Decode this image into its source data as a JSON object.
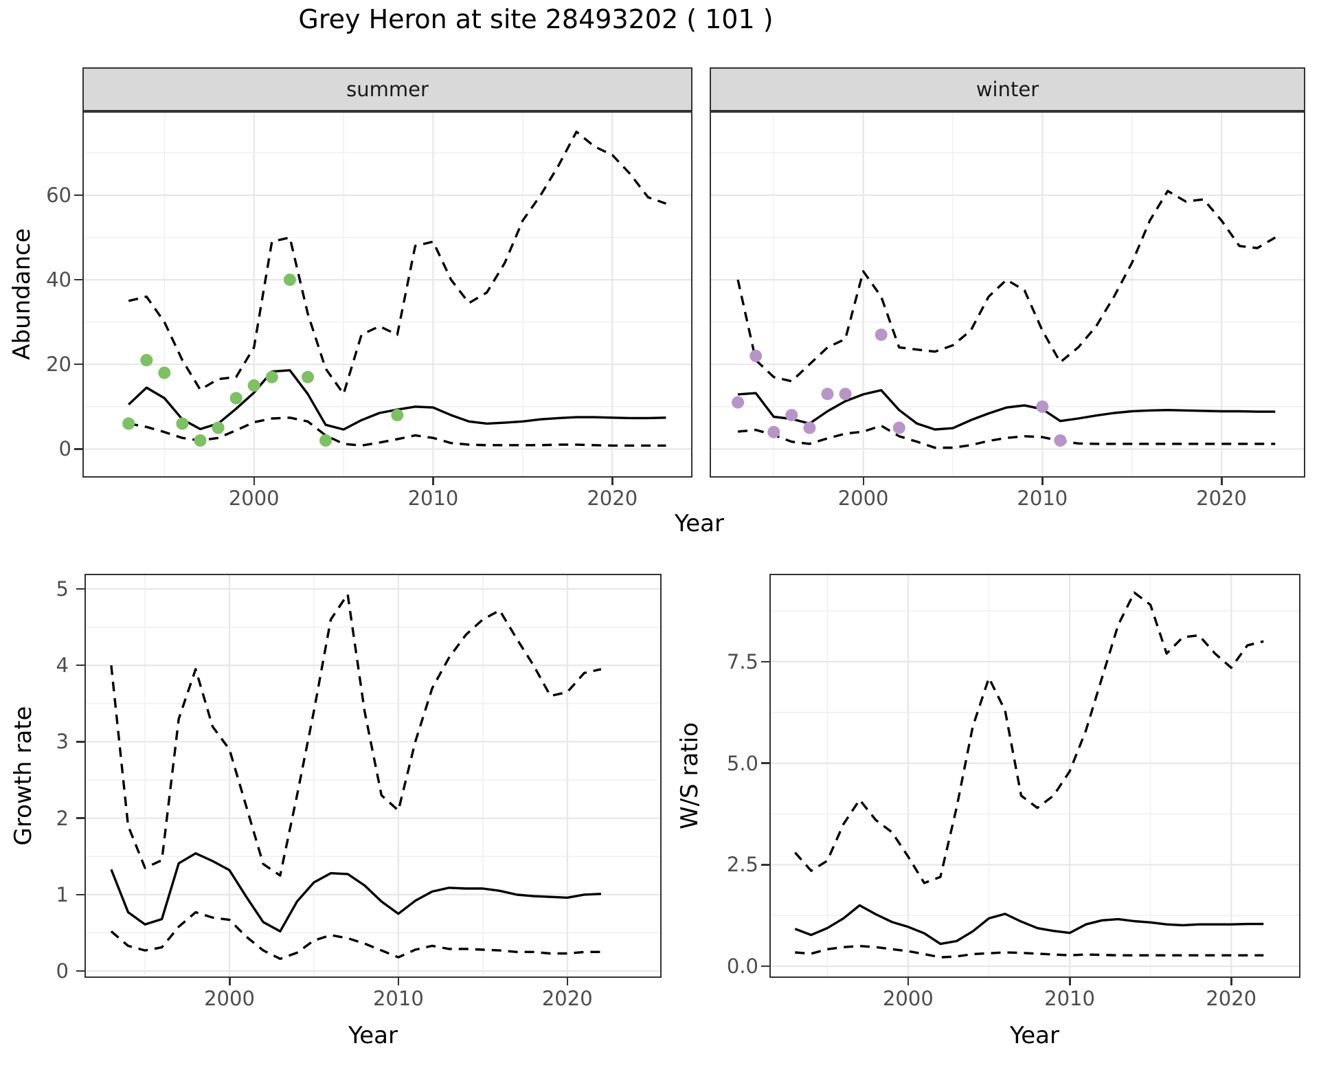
{
  "title": "Grey Heron at site 28493202 ( 101 )",
  "axis_titles": {
    "abundance": "Abundance",
    "year": "Year",
    "growth": "Growth rate",
    "ws": "W/S ratio"
  },
  "facets": [
    {
      "label": "summer"
    },
    {
      "label": "winter"
    }
  ],
  "colors": {
    "summer_point": "#7CC162",
    "winter_point": "#B795C8",
    "line": "#000000",
    "grid_major": "#E7E7E7",
    "grid_minor": "#EFEFEF",
    "strip_bg": "#D9D9D9",
    "panel_border": "#333333",
    "tick_text": "#4D4D4D"
  },
  "chart_data": [
    {
      "type": "line",
      "key": "summer",
      "facet": "summer",
      "ylabel": "Abundance",
      "x": [
        1993,
        1994,
        1995,
        1996,
        1997,
        1998,
        1999,
        2000,
        2001,
        2002,
        2003,
        2004,
        2005,
        2006,
        2007,
        2008,
        2009,
        2010,
        2011,
        2012,
        2013,
        2014,
        2015,
        2016,
        2017,
        2018,
        2019,
        2020,
        2021,
        2022,
        2023
      ],
      "series": [
        {
          "name": "median",
          "style": "solid",
          "values": [
            10.5,
            14.5,
            12,
            7,
            4.7,
            6,
            9.5,
            13.3,
            18.3,
            18.6,
            13,
            5.7,
            4.6,
            6.8,
            8.5,
            9.3,
            10,
            9.8,
            8,
            6.5,
            6,
            6.2,
            6.5,
            7,
            7.3,
            7.5,
            7.5,
            7.4,
            7.3,
            7.3,
            7.4
          ]
        },
        {
          "name": "upper_ci",
          "style": "dashed",
          "values": [
            35,
            36,
            30,
            21,
            14,
            16.5,
            17,
            24,
            49,
            50,
            32,
            19,
            13,
            27,
            29,
            27,
            48,
            49,
            40,
            34.5,
            37,
            44,
            54,
            60,
            67,
            75,
            71.5,
            69.5,
            65,
            59.5,
            58
          ]
        },
        {
          "name": "lower_ci",
          "style": "dashed",
          "values": [
            6,
            5.2,
            4,
            2.6,
            2,
            2.6,
            4.4,
            6.3,
            7.2,
            7.4,
            6.5,
            3.2,
            1.2,
            0.8,
            1.5,
            2.3,
            3.2,
            2.6,
            1.4,
            1,
            0.9,
            0.9,
            0.9,
            0.9,
            1,
            1,
            0.9,
            0.8,
            0.8,
            0.8,
            0.8
          ]
        }
      ],
      "points": {
        "color_key": "summer_point",
        "data": [
          [
            1993,
            6
          ],
          [
            1994,
            21
          ],
          [
            1995,
            18
          ],
          [
            1996,
            6
          ],
          [
            1997,
            2
          ],
          [
            1998,
            5
          ],
          [
            1999,
            12
          ],
          [
            2000,
            15
          ],
          [
            2001,
            17
          ],
          [
            2002,
            40
          ],
          [
            2003,
            17
          ],
          [
            2004,
            2
          ],
          [
            2008,
            8
          ]
        ]
      },
      "xlim": [
        1990.5,
        2024.4
      ],
      "ylim": [
        -6.45,
        79.5
      ],
      "x_ticks": {
        "values": [
          2000,
          2010,
          2020
        ],
        "labels": [
          "2000",
          "2010",
          "2020"
        ],
        "minor": [
          1995,
          2005,
          2015
        ]
      },
      "y_ticks": {
        "values": [
          0,
          20,
          40,
          60
        ],
        "labels": [
          "0",
          "20",
          "40",
          "60"
        ],
        "minor": [
          10,
          30,
          50,
          70
        ],
        "show_labels": true
      }
    },
    {
      "type": "line",
      "key": "winter",
      "facet": "winter",
      "ylabel": "Abundance",
      "x": [
        1993,
        1994,
        1995,
        1996,
        1997,
        1998,
        1999,
        2000,
        2001,
        2002,
        2003,
        2004,
        2005,
        2006,
        2007,
        2008,
        2009,
        2010,
        2011,
        2012,
        2013,
        2014,
        2015,
        2016,
        2017,
        2018,
        2019,
        2020,
        2021,
        2022,
        2023
      ],
      "series": [
        {
          "name": "median",
          "style": "solid",
          "values": [
            12.9,
            13.2,
            7.6,
            7.1,
            6,
            8.9,
            11.3,
            12.9,
            13.9,
            9.2,
            6,
            4.6,
            4.9,
            6.8,
            8.4,
            9.8,
            10.3,
            9.4,
            6.6,
            7.2,
            7.9,
            8.5,
            8.9,
            9.1,
            9.2,
            9.1,
            9,
            8.9,
            8.9,
            8.8,
            8.8
          ]
        },
        {
          "name": "upper_ci",
          "style": "dashed",
          "values": [
            40,
            21,
            17,
            16,
            20,
            24,
            26,
            42,
            36,
            24,
            23.5,
            23,
            24.5,
            28,
            36,
            40,
            37.5,
            28,
            20.5,
            24,
            29,
            36,
            44,
            54,
            61,
            58.5,
            59,
            54,
            48,
            47.5,
            50
          ]
        },
        {
          "name": "lower_ci",
          "style": "dashed",
          "values": [
            4.1,
            4.5,
            3.3,
            1.7,
            1.2,
            2.5,
            3.6,
            4.1,
            5.5,
            3,
            1.7,
            0.3,
            0.3,
            0.9,
            1.9,
            2.6,
            3,
            2.8,
            1.9,
            1.3,
            1.2,
            1.2,
            1.2,
            1.2,
            1.2,
            1.2,
            1.2,
            1.2,
            1.2,
            1.2,
            1.2
          ]
        }
      ],
      "points": {
        "color_key": "winter_point",
        "data": [
          [
            1993,
            11
          ],
          [
            1994,
            22
          ],
          [
            1995,
            4
          ],
          [
            1996,
            8
          ],
          [
            1997,
            5
          ],
          [
            1998,
            13
          ],
          [
            1999,
            13
          ],
          [
            2001,
            27
          ],
          [
            2002,
            5
          ],
          [
            2010,
            10
          ],
          [
            2011,
            2
          ]
        ]
      },
      "xlim": [
        1991.5,
        2024.6
      ],
      "ylim": [
        -6.45,
        79.5
      ],
      "x_ticks": {
        "values": [
          2000,
          2010,
          2020
        ],
        "labels": [
          "2000",
          "2010",
          "2020"
        ],
        "minor": [
          1995,
          2005,
          2015
        ]
      },
      "y_ticks": {
        "values": [
          0,
          20,
          40,
          60
        ],
        "labels": [
          "0",
          "20",
          "40",
          "60"
        ],
        "minor": [
          10,
          30,
          50,
          70
        ],
        "show_labels": false
      }
    },
    {
      "type": "line",
      "key": "growth",
      "facet": null,
      "ylabel": "Growth rate",
      "x": [
        1993,
        1994,
        1995,
        1996,
        1997,
        1998,
        1999,
        2000,
        2001,
        2002,
        2003,
        2004,
        2005,
        2006,
        2007,
        2008,
        2009,
        2010,
        2011,
        2012,
        2013,
        2014,
        2015,
        2016,
        2017,
        2018,
        2019,
        2020,
        2021,
        2022
      ],
      "series": [
        {
          "name": "median",
          "style": "solid",
          "values": [
            1.33,
            0.77,
            0.61,
            0.68,
            1.41,
            1.54,
            1.44,
            1.32,
            0.97,
            0.64,
            0.52,
            0.91,
            1.16,
            1.28,
            1.27,
            1.12,
            0.91,
            0.75,
            0.92,
            1.04,
            1.09,
            1.08,
            1.08,
            1.05,
            1,
            0.98,
            0.97,
            0.96,
            1,
            1.01
          ]
        },
        {
          "name": "upper_ci",
          "style": "dashed",
          "values": [
            4,
            1.9,
            1.35,
            1.45,
            3.3,
            3.95,
            3.2,
            2.9,
            2.15,
            1.4,
            1.25,
            2.3,
            3.4,
            4.6,
            4.93,
            3.4,
            2.3,
            2.1,
            3,
            3.7,
            4.1,
            4.4,
            4.6,
            4.72,
            4.35,
            4,
            3.6,
            3.65,
            3.9,
            3.95
          ]
        },
        {
          "name": "lower_ci",
          "style": "dashed",
          "values": [
            0.52,
            0.33,
            0.27,
            0.31,
            0.58,
            0.77,
            0.7,
            0.67,
            0.45,
            0.27,
            0.16,
            0.24,
            0.4,
            0.47,
            0.43,
            0.36,
            0.27,
            0.18,
            0.28,
            0.33,
            0.29,
            0.29,
            0.28,
            0.27,
            0.25,
            0.25,
            0.23,
            0.23,
            0.25,
            0.25
          ]
        }
      ],
      "points": null,
      "xlim": [
        1991.5,
        2025.5
      ],
      "ylim": [
        -0.071,
        5.18
      ],
      "x_ticks": {
        "values": [
          2000,
          2010,
          2020
        ],
        "labels": [
          "2000",
          "2010",
          "2020"
        ],
        "minor": [
          1995,
          2005,
          2015
        ]
      },
      "y_ticks": {
        "values": [
          0,
          1,
          2,
          3,
          4,
          5
        ],
        "labels": [
          "0",
          "1",
          "2",
          "3",
          "4",
          "5"
        ],
        "minor": [
          0.5,
          1.5,
          2.5,
          3.5,
          4.5
        ],
        "show_labels": true
      }
    },
    {
      "type": "line",
      "key": "ws",
      "facet": null,
      "ylabel": "W/S ratio",
      "x": [
        1993,
        1994,
        1995,
        1996,
        1997,
        1998,
        1999,
        2000,
        2001,
        2002,
        2003,
        2004,
        2005,
        2006,
        2007,
        2008,
        2009,
        2010,
        2011,
        2012,
        2013,
        2014,
        2015,
        2016,
        2017,
        2018,
        2019,
        2020,
        2021,
        2022
      ],
      "series": [
        {
          "name": "median",
          "style": "solid",
          "values": [
            0.92,
            0.77,
            0.94,
            1.18,
            1.5,
            1.28,
            1.09,
            0.97,
            0.81,
            0.55,
            0.62,
            0.86,
            1.18,
            1.29,
            1.1,
            0.94,
            0.87,
            0.82,
            1.03,
            1.13,
            1.16,
            1.11,
            1.08,
            1.03,
            1.01,
            1.03,
            1.03,
            1.03,
            1.04,
            1.04
          ]
        },
        {
          "name": "upper_ci",
          "style": "dashed",
          "values": [
            2.8,
            2.35,
            2.6,
            3.5,
            4.1,
            3.6,
            3.3,
            2.7,
            2.05,
            2.2,
            3.9,
            5.9,
            7.1,
            6.3,
            4.2,
            3.9,
            4.2,
            4.8,
            5.8,
            7.1,
            8.4,
            9.2,
            8.9,
            7.7,
            8.1,
            8.15,
            7.7,
            7.35,
            7.9,
            8
          ]
        },
        {
          "name": "lower_ci",
          "style": "dashed",
          "values": [
            0.34,
            0.31,
            0.42,
            0.47,
            0.5,
            0.47,
            0.42,
            0.37,
            0.3,
            0.22,
            0.24,
            0.3,
            0.32,
            0.34,
            0.33,
            0.31,
            0.29,
            0.27,
            0.29,
            0.28,
            0.27,
            0.27,
            0.27,
            0.27,
            0.27,
            0.27,
            0.27,
            0.27,
            0.27,
            0.27
          ]
        }
      ],
      "points": null,
      "xlim": [
        1991.5,
        2024.2
      ],
      "ylim": [
        -0.252,
        9.63
      ],
      "x_ticks": {
        "values": [
          2000,
          2010,
          2020
        ],
        "labels": [
          "2000",
          "2010",
          "2020"
        ],
        "minor": [
          1995,
          2005,
          2015
        ]
      },
      "y_ticks": {
        "values": [
          0,
          2.5,
          5,
          7.5
        ],
        "labels": [
          "0.0",
          "2.5",
          "5.0",
          "7.5"
        ],
        "minor": [
          1.25,
          3.75,
          6.25,
          8.75
        ],
        "show_labels": true
      }
    }
  ]
}
